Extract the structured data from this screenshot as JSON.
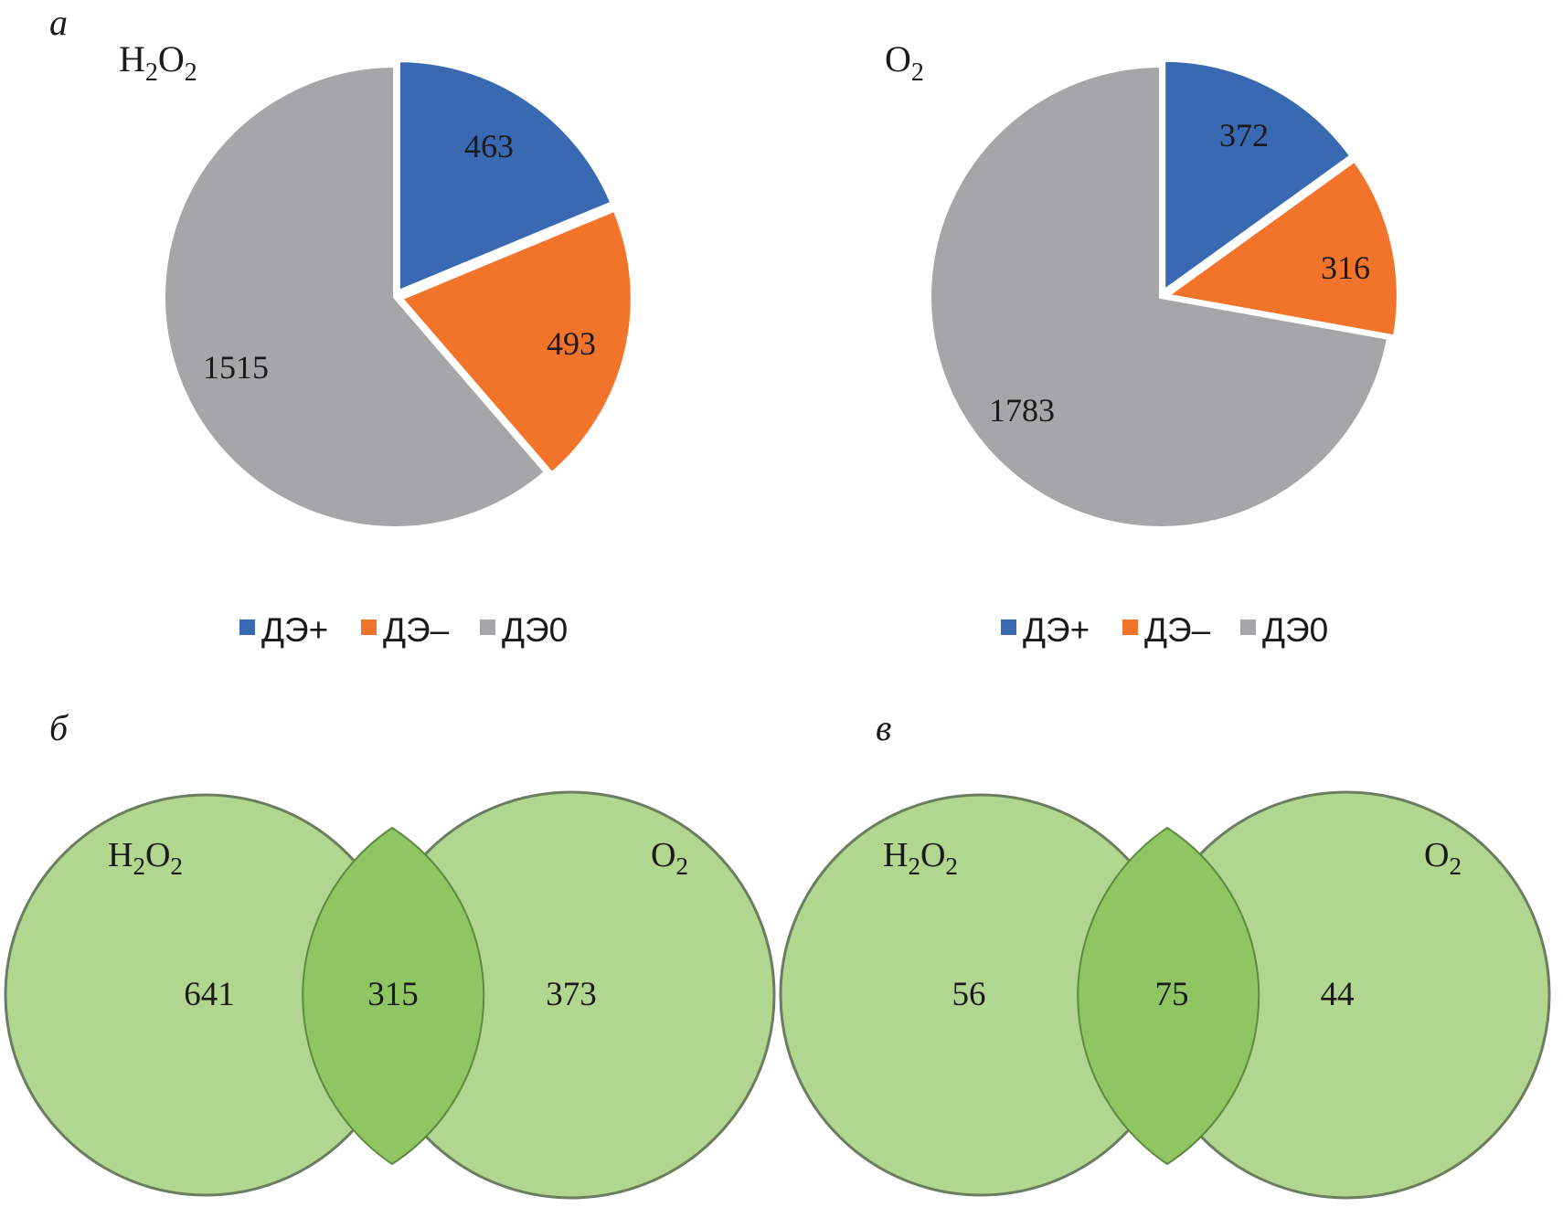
{
  "panel_letters": {
    "a": "а",
    "b": "б",
    "c": "в"
  },
  "colors": {
    "de_plus": "#3a69b4",
    "de_minus": "#f2742a",
    "de_zero": "#a5a6a7",
    "venn_fill": "#a8d183",
    "venn_overlap": "#8fc563",
    "venn_stroke": "#6b7d5f"
  },
  "chart_data": [
    {
      "type": "pie",
      "panel": "а",
      "title": "H2O2",
      "title_main": "H",
      "title_sub1": "2",
      "title_mid": "O",
      "title_sub2": "2",
      "categories": [
        "ДЭ+",
        "ДЭ–",
        "ДЭ0"
      ],
      "values": [
        463,
        493,
        1515
      ],
      "legend_position": "bottom"
    },
    {
      "type": "pie",
      "panel": "а",
      "title": "O2",
      "title_main": "O",
      "title_sub1": "2",
      "categories": [
        "ДЭ+",
        "ДЭ–",
        "ДЭ0"
      ],
      "values": [
        372,
        316,
        1783
      ],
      "legend_position": "bottom"
    },
    {
      "type": "venn",
      "panel": "б",
      "sets": [
        "H2O2",
        "O2"
      ],
      "left_only": 641,
      "intersection": 315,
      "right_only": 373
    },
    {
      "type": "venn",
      "panel": "в",
      "sets": [
        "H2O2",
        "O2"
      ],
      "left_only": 56,
      "intersection": 75,
      "right_only": 44
    }
  ],
  "venn_labels": {
    "left_main": "H",
    "left_sub1": "2",
    "left_mid": "O",
    "left_sub2": "2",
    "right_main": "O",
    "right_sub": "2"
  }
}
